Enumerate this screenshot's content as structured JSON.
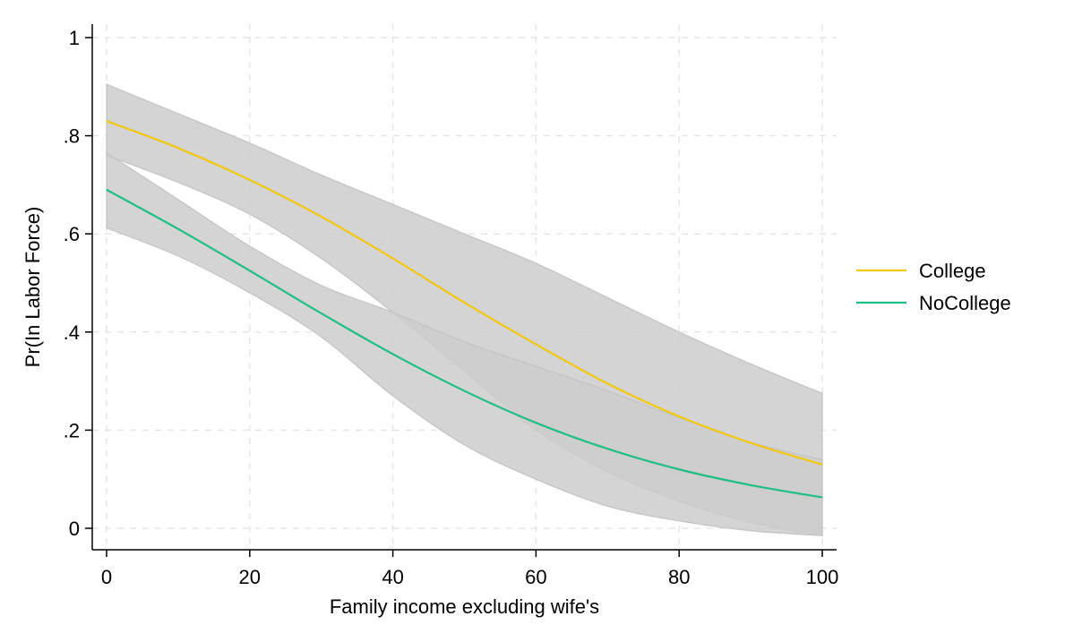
{
  "chart_data": {
    "type": "line",
    "title": "",
    "xlabel": "Family income excluding wife's",
    "ylabel": "Pr(In Labor Force)",
    "xlim": [
      0,
      100
    ],
    "ylim": [
      0,
      1
    ],
    "x_ticks": [
      0,
      20,
      40,
      60,
      80,
      100
    ],
    "x_tick_labels": [
      "0",
      "20",
      "40",
      "60",
      "80",
      "100"
    ],
    "y_ticks": [
      0,
      0.2,
      0.4,
      0.6,
      0.8,
      1
    ],
    "y_tick_labels": [
      "0",
      ".2",
      ".4",
      ".6",
      ".8",
      "1"
    ],
    "grid": true,
    "legend_position": "right",
    "x": [
      0,
      10,
      20,
      30,
      40,
      50,
      60,
      70,
      80,
      90,
      100
    ],
    "series": [
      {
        "name": "College",
        "color": "#f2c80f",
        "values": [
          0.83,
          0.775,
          0.71,
          0.635,
          0.55,
          0.46,
          0.375,
          0.295,
          0.228,
          0.174,
          0.13
        ],
        "ci_lower": [
          0.76,
          0.705,
          0.64,
          0.55,
          0.44,
          0.32,
          0.2,
          0.115,
          0.055,
          0.012,
          -0.015
        ],
        "ci_upper": [
          0.905,
          0.845,
          0.785,
          0.72,
          0.66,
          0.6,
          0.54,
          0.47,
          0.4,
          0.335,
          0.275
        ]
      },
      {
        "name": "NoCollege",
        "color": "#1fbf84",
        "values": [
          0.69,
          0.61,
          0.525,
          0.438,
          0.355,
          0.28,
          0.215,
          0.162,
          0.12,
          0.088,
          0.063
        ],
        "ci_lower": [
          0.612,
          0.555,
          0.48,
          0.39,
          0.27,
          0.17,
          0.1,
          0.045,
          0.015,
          -0.005,
          -0.015
        ],
        "ci_upper": [
          0.765,
          0.67,
          0.575,
          0.495,
          0.44,
          0.38,
          0.33,
          0.28,
          0.225,
          0.175,
          0.14
        ]
      }
    ],
    "ci_color": "#cccccc"
  }
}
